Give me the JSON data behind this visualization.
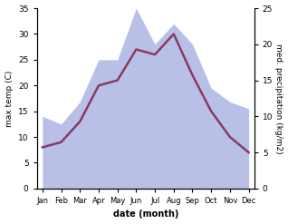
{
  "months": [
    "Jan",
    "Feb",
    "Mar",
    "Apr",
    "May",
    "Jun",
    "Jul",
    "Aug",
    "Sep",
    "Oct",
    "Nov",
    "Dec"
  ],
  "month_indices": [
    0,
    1,
    2,
    3,
    4,
    5,
    6,
    7,
    8,
    9,
    10,
    11
  ],
  "temp": [
    8,
    9,
    13,
    20,
    21,
    27,
    26,
    30,
    22,
    15,
    10,
    7
  ],
  "precip_left_scale": [
    14,
    12.5,
    16.8,
    25,
    25,
    35,
    28,
    32,
    28,
    19.5,
    16.8,
    15.5
  ],
  "temp_color": "#8B3A62",
  "precip_fill_color": "#b8c0e8",
  "precip_fill_alpha": 1.0,
  "xlabel": "date (month)",
  "ylabel_left": "max temp (C)",
  "ylabel_right": "med. precipitation (kg/m2)",
  "ylim_left": [
    0,
    35
  ],
  "ylim_right": [
    0,
    25
  ],
  "yticks_left": [
    0,
    5,
    10,
    15,
    20,
    25,
    30,
    35
  ],
  "yticks_right": [
    0,
    5,
    10,
    15,
    20,
    25
  ],
  "bg_color": "#ffffff",
  "line_width": 1.8
}
